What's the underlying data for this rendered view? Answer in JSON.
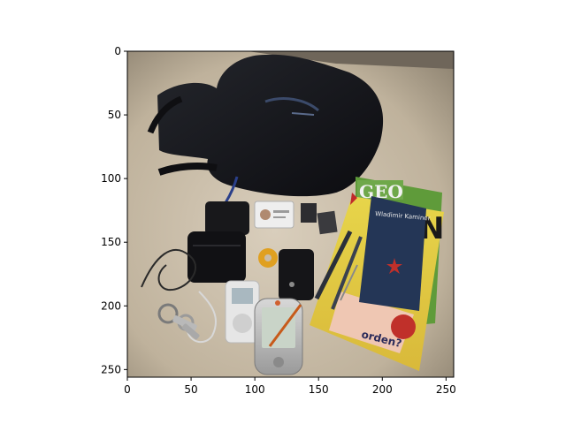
{
  "figure": {
    "background": "#ffffff",
    "image_description_icon": "photo-icon",
    "axes": {
      "xlim": [
        0,
        256
      ],
      "ylim": [
        256,
        0
      ],
      "x_ticks": [
        {
          "value": 0,
          "label": "0"
        },
        {
          "value": 50,
          "label": "50"
        },
        {
          "value": 100,
          "label": "100"
        },
        {
          "value": 150,
          "label": "150"
        },
        {
          "value": 200,
          "label": "200"
        },
        {
          "value": 250,
          "label": "250"
        }
      ],
      "y_ticks": [
        {
          "value": 0,
          "label": "0"
        },
        {
          "value": 50,
          "label": "50"
        },
        {
          "value": 100,
          "label": "100"
        },
        {
          "value": 150,
          "label": "150"
        },
        {
          "value": 200,
          "label": "200"
        },
        {
          "value": 250,
          "label": "250"
        }
      ]
    },
    "photo": {
      "table_color": "#c9bca8",
      "backpack_color": "#15161a",
      "magazine_title": "GEO",
      "magazine_letter": "N",
      "magazine_question": "orden?",
      "book_author": "Wladimir Kaminer",
      "book_color": "#243656",
      "star_color": "#c0302a"
    }
  }
}
